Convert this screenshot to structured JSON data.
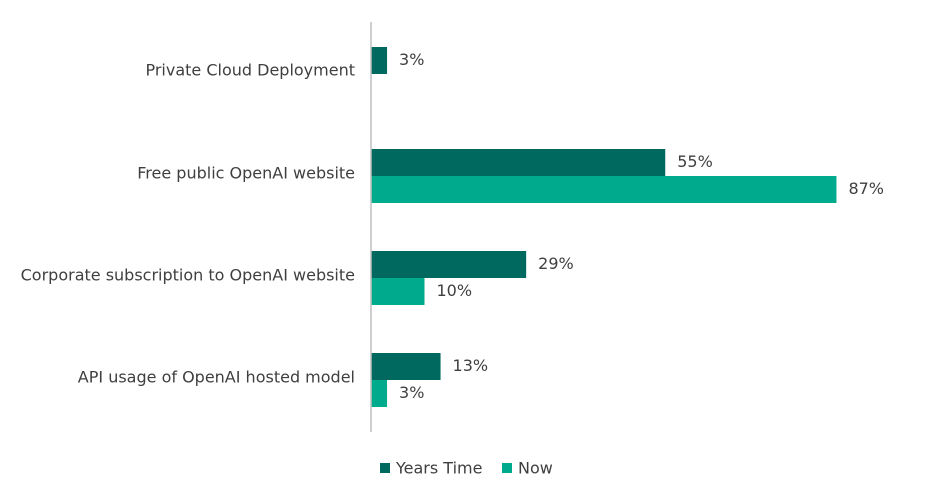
{
  "chart_data": {
    "type": "bar",
    "orientation": "horizontal",
    "categories": [
      "Private Cloud Deployment",
      "Free public OpenAI website",
      "Corporate subscription to OpenAI website",
      "API usage of OpenAI hosted model"
    ],
    "series": [
      {
        "name": "Years Time",
        "values": [
          3,
          55,
          29,
          13
        ],
        "color": "#00695f"
      },
      {
        "name": "Now",
        "values": [
          null,
          87,
          10,
          3
        ],
        "color": "#00aa8c"
      }
    ],
    "value_labels": {
      "Years Time": [
        "3%",
        "55%",
        "29%",
        "13%"
      ],
      "Now": [
        "",
        "87%",
        "10%",
        "3%"
      ]
    },
    "xlim": [
      0,
      100
    ],
    "unit": "%",
    "grid": false,
    "legend": {
      "position": "bottom",
      "entries": [
        "Years Time",
        "Now"
      ]
    },
    "axis_color": "#bfbfbf",
    "text_color": "#3f3f3f"
  }
}
